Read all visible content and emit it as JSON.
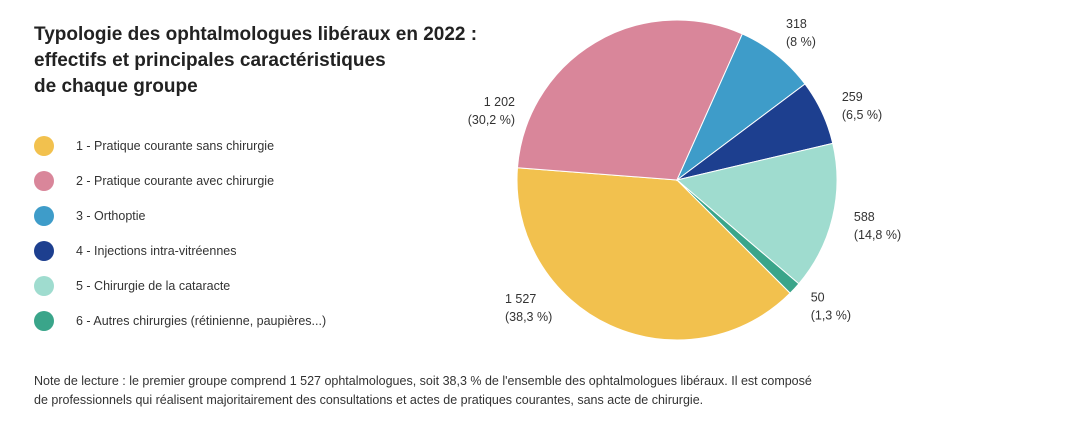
{
  "chart_data": {
    "type": "pie",
    "title": [
      "Typologie des ophtalmologues libéraux en 2022 :",
      "effectifs et principales caractéristiques",
      "de chaque groupe"
    ],
    "categories": [
      "1 - Pratique courante sans chirurgie",
      "2 - Pratique courante avec chirurgie",
      "3 - Orthoptie",
      "4 - Injections intra-vitréennes",
      "5 - Chirurgie de la cataracte",
      "6 - Autres chirurgies (rétinienne, paupières...)"
    ],
    "values": [
      1527,
      1202,
      318,
      259,
      588,
      50
    ],
    "value_labels": [
      "1 527",
      "1 202",
      "318",
      "259",
      "588",
      "50"
    ],
    "percent_labels": [
      "(38,3 %)",
      "(30,2 %)",
      "(8 %)",
      "(6,5 %)",
      "(14,8 %)",
      "(1,3 %)"
    ],
    "colors": [
      "#f2c14e",
      "#d9869a",
      "#3e9cc9",
      "#1d3f8f",
      "#9fdccf",
      "#3aa58a"
    ],
    "note": [
      "Note de lecture : le premier groupe comprend 1 527 ophtalmologues, soit 38,3 % de l'ensemble des ophtalmologues libéraux. Il est composé",
      "de professionnels qui réalisent majoritairement des consultations et actes de pratiques courantes, sans acte de chirurgie."
    ]
  }
}
